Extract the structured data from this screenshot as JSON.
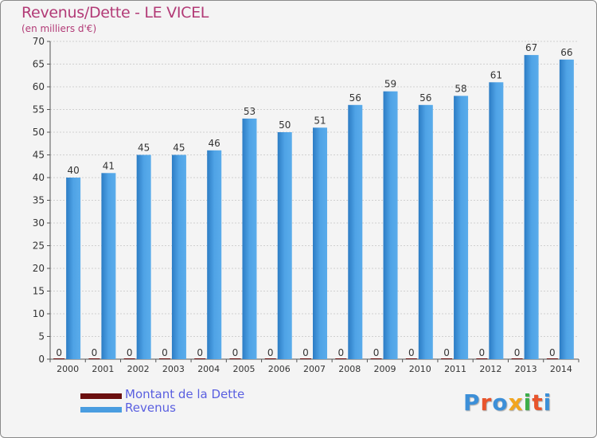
{
  "title": "Revenus/Dette - LE VICEL",
  "subtitle": "(en milliers d'€)",
  "logo_text": "Proxiti",
  "colors": {
    "title": "#b23a76",
    "dette": "#6b0f0f",
    "revenus": "#4a9de0",
    "revenus_dark": "#2c7cc4",
    "legend_text": "#5a5fe0",
    "logo": [
      "#3c8fd8",
      "#e8542c",
      "#3c8fd8",
      "#f2a51e",
      "#3cae4a",
      "#e8542c",
      "#3c8fd8"
    ]
  },
  "chart_data": {
    "type": "bar",
    "title": "Revenus/Dette - LE VICEL",
    "subtitle": "(en milliers d'€)",
    "xlabel": "",
    "ylabel": "",
    "ylim": [
      0,
      70
    ],
    "yticks": [
      0,
      5,
      10,
      15,
      20,
      25,
      30,
      35,
      40,
      45,
      50,
      55,
      60,
      65,
      70
    ],
    "grid": true,
    "legend_position": "bottom-left",
    "categories": [
      "2000",
      "2001",
      "2002",
      "2003",
      "2004",
      "2005",
      "2006",
      "2007",
      "2008",
      "2009",
      "2010",
      "2011",
      "2012",
      "2013",
      "2014"
    ],
    "series": [
      {
        "name": "Montant de la Dette",
        "values": [
          0,
          0,
          0,
          0,
          0,
          0,
          0,
          0,
          0,
          0,
          0,
          0,
          0,
          0,
          0
        ]
      },
      {
        "name": "Revenus",
        "values": [
          40,
          41,
          45,
          45,
          46,
          53,
          50,
          51,
          56,
          59,
          56,
          58,
          61,
          67,
          66
        ]
      }
    ]
  }
}
